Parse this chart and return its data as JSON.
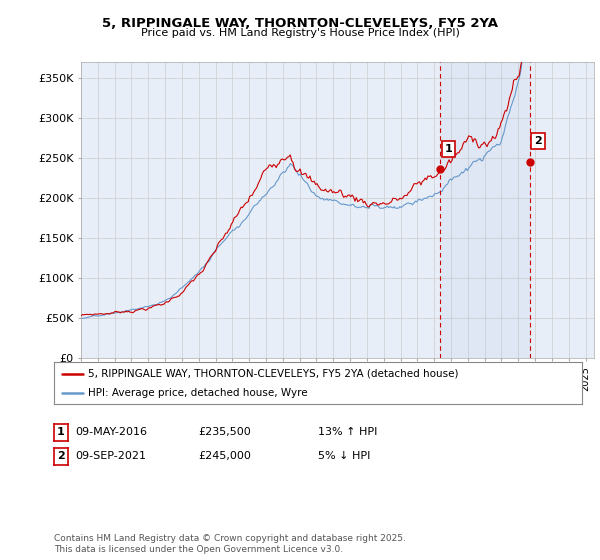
{
  "title_line1": "5, RIPPINGALE WAY, THORNTON-CLEVELEYS, FY5 2YA",
  "title_line2": "Price paid vs. HM Land Registry's House Price Index (HPI)",
  "ylabel_ticks": [
    "£0",
    "£50K",
    "£100K",
    "£150K",
    "£200K",
    "£250K",
    "£300K",
    "£350K"
  ],
  "ytick_values": [
    0,
    50000,
    100000,
    150000,
    200000,
    250000,
    300000,
    350000
  ],
  "ylim": [
    0,
    370000
  ],
  "xlim_start": 1995.0,
  "xlim_end": 2025.5,
  "marker1_x": 2016.35,
  "marker1_y": 235500,
  "marker2_x": 2021.69,
  "marker2_y": 245000,
  "marker1_label": "1",
  "marker2_label": "2",
  "legend_line1": "5, RIPPINGALE WAY, THORNTON-CLEVELEYS, FY5 2YA (detached house)",
  "legend_line2": "HPI: Average price, detached house, Wyre",
  "table_row1": [
    "1",
    "09-MAY-2016",
    "£235,500",
    "13% ↑ HPI"
  ],
  "table_row2": [
    "2",
    "09-SEP-2021",
    "£245,000",
    "5% ↓ HPI"
  ],
  "footer": "Contains HM Land Registry data © Crown copyright and database right 2025.\nThis data is licensed under the Open Government Licence v3.0.",
  "line1_color": "#cc0000",
  "line2_color": "#6699cc",
  "marker_color": "#cc0000",
  "vline_color": "#cc0000",
  "grid_color": "#cccccc",
  "background_color": "#ffffff",
  "plot_bg_color": "#e8eef8"
}
